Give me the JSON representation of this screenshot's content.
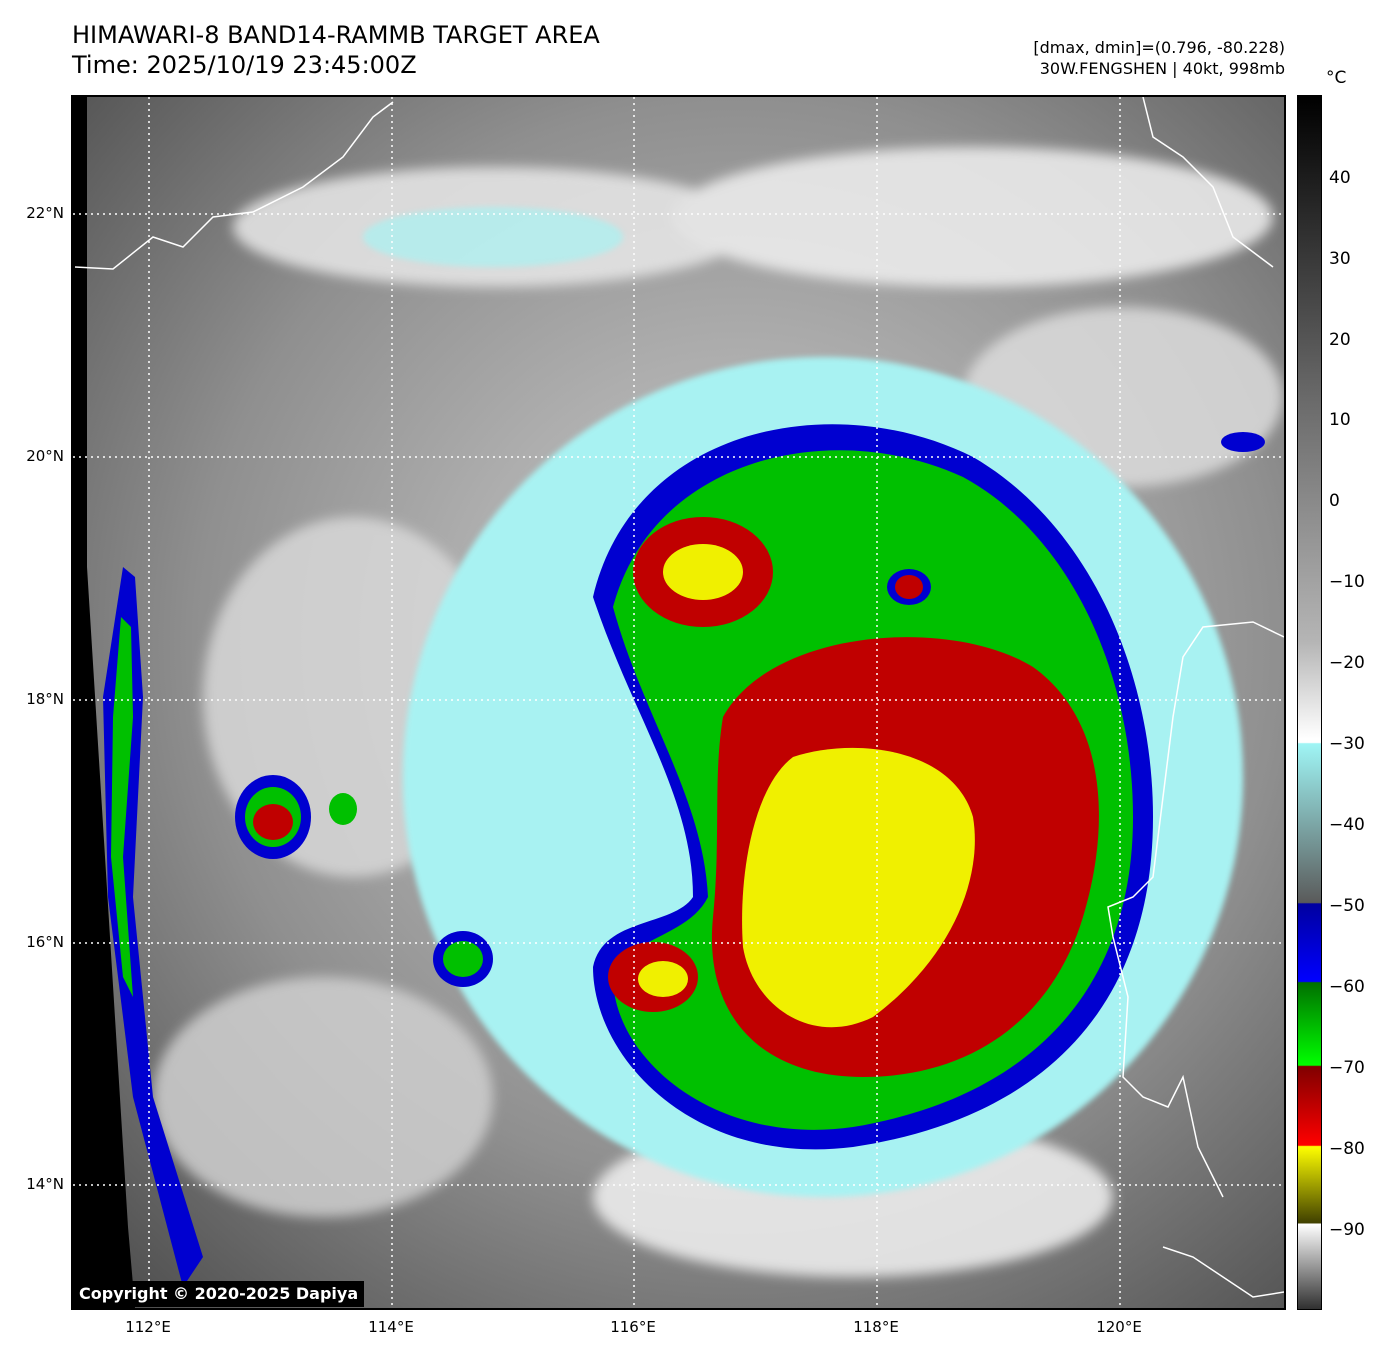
{
  "header": {
    "title_line1": "HIMAWARI-8 BAND14-RAMMB TARGET AREA",
    "title_line2": "Time: 2025/10/19 23:45:00Z",
    "dmax_dmin": "[dmax, dmin]=(0.796, -80.228)",
    "storm_info": "30W.FENGSHEN | 40kt, 998mb"
  },
  "map": {
    "lat_labels": [
      "22°N",
      "20°N",
      "18°N",
      "16°N",
      "14°N"
    ],
    "lon_labels": [
      "112°E",
      "114°E",
      "116°E",
      "118°E",
      "120°E"
    ],
    "copyright": "Copyright © 2020-2025 Dapiya"
  },
  "colorbar": {
    "unit": "°C",
    "ticks": [
      "40",
      "30",
      "20",
      "10",
      "0",
      "−10",
      "−20",
      "−30",
      "−40",
      "−50",
      "−60",
      "−70",
      "−80",
      "−90"
    ],
    "colors": {
      "warm_top": "#000000",
      "mid": "#8a8a8a",
      "light": "#ffffff",
      "cyan": "#9ff5f5",
      "blue": "#0000d0",
      "green": "#00c000",
      "red": "#c00000",
      "yellow": "#f0f000"
    }
  }
}
